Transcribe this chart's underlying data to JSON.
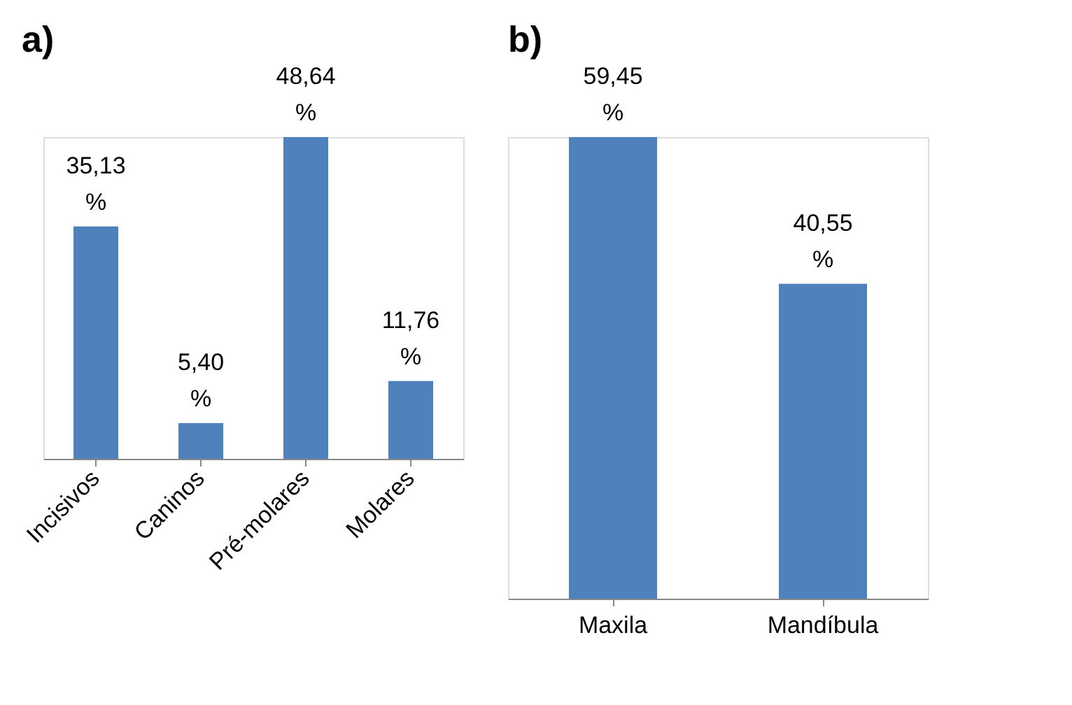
{
  "chart_data": [
    {
      "type": "bar",
      "title": "a)",
      "categories": [
        "Incisivos",
        "Caninos",
        "Pré-molares",
        "Molares"
      ],
      "values": [
        35.13,
        5.4,
        48.64,
        11.76
      ],
      "value_labels": [
        "35,13 %",
        "5,40 %",
        "48,64 %",
        "11,76 %"
      ],
      "color": "#4f81bd"
    },
    {
      "type": "bar",
      "title": "b)",
      "categories": [
        "Maxila",
        "Mandíbula"
      ],
      "values": [
        59.45,
        40.55
      ],
      "value_labels": [
        "59,45 %",
        "40,55 %"
      ],
      "color": "#4f81bd"
    }
  ]
}
